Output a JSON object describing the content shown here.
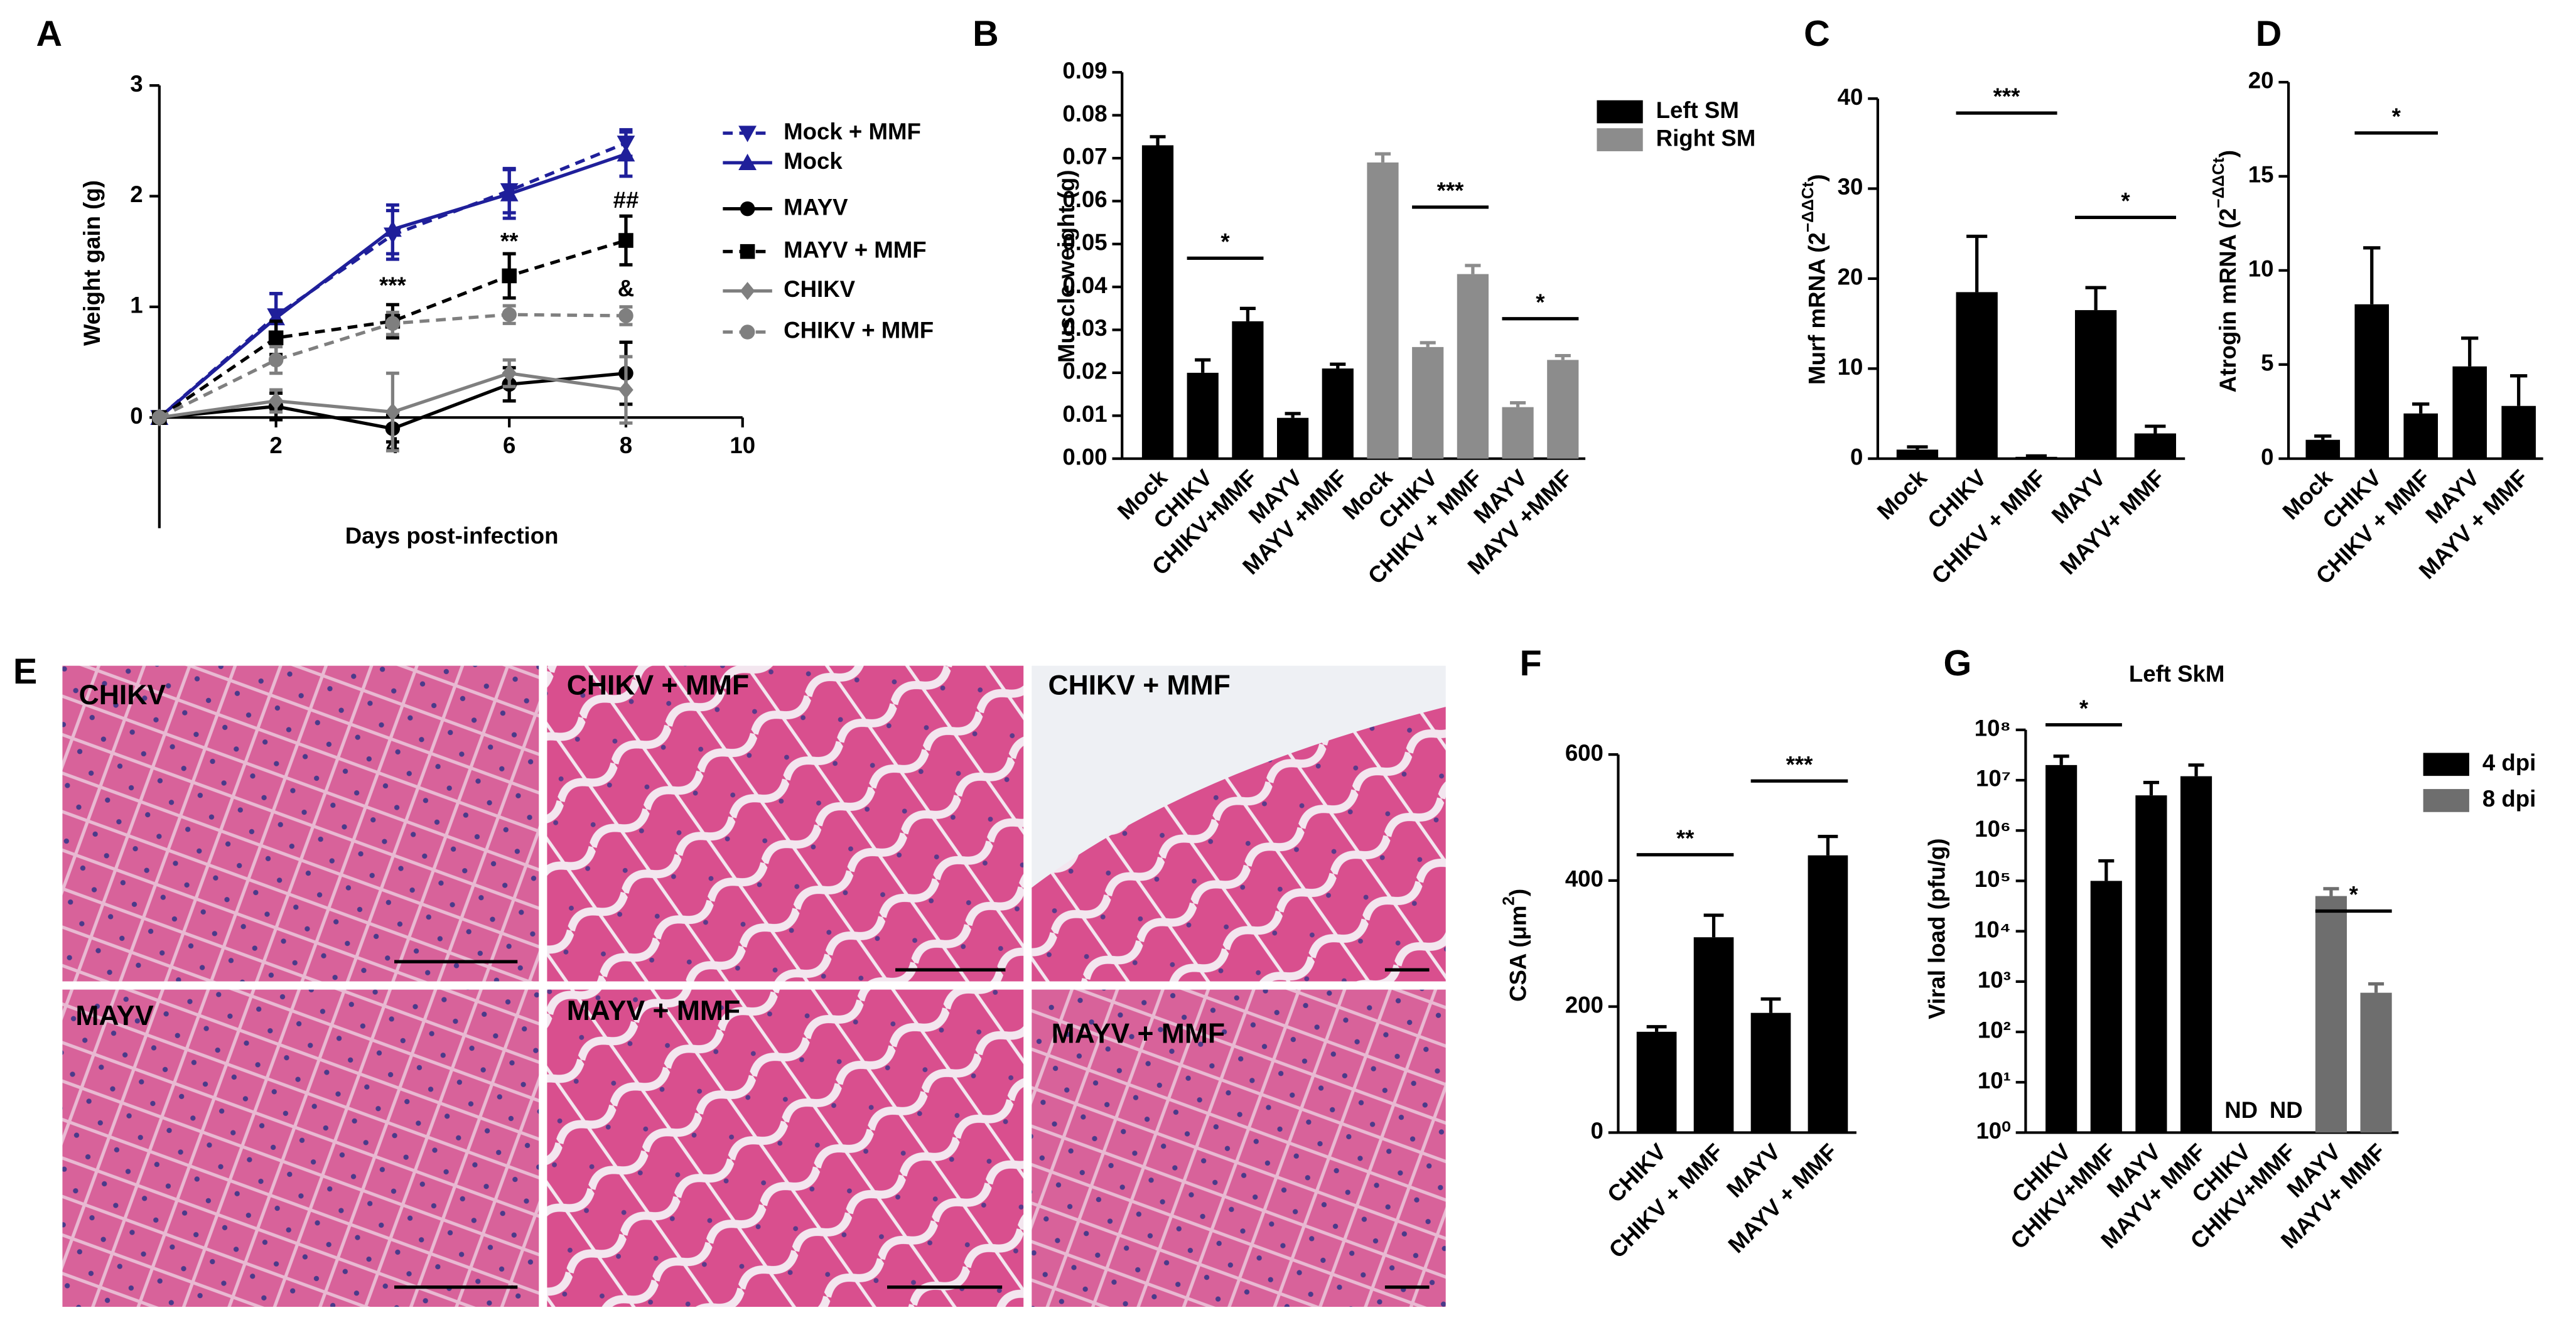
{
  "chart_data": [
    {
      "type": "line",
      "panel": "A",
      "ylabel": "Weight gain (g)",
      "xlabel": "Days post-infection",
      "x": [
        0,
        2,
        4,
        6,
        8
      ],
      "xlim": [
        0,
        10
      ],
      "xticks": [
        2,
        4,
        6,
        8,
        10
      ],
      "ylim": [
        -1,
        3
      ],
      "yticks": [
        0,
        1,
        2,
        3
      ],
      "series": [
        {
          "name": "Mock + MMF",
          "color": "#1f1f9a",
          "marker": "v",
          "dash": true,
          "values": [
            0,
            0.92,
            1.65,
            2.05,
            2.48
          ],
          "errors": [
            0,
            0.2,
            0.22,
            0.2,
            0.12
          ]
        },
        {
          "name": "Mock",
          "color": "#1f1f9a",
          "marker": "^",
          "dash": false,
          "values": [
            0,
            0.9,
            1.7,
            2.02,
            2.38
          ],
          "errors": [
            0,
            0.22,
            0.22,
            0.22,
            0.2
          ]
        },
        {
          "name": "MAYV",
          "color": "#000000",
          "marker": "o",
          "dash": false,
          "values": [
            0,
            0.1,
            -0.1,
            0.3,
            0.4
          ],
          "errors": [
            0,
            0.12,
            0.12,
            0.15,
            0.28
          ]
        },
        {
          "name": "MAYV + MMF",
          "color": "#000000",
          "marker": "s",
          "dash": true,
          "values": [
            0,
            0.72,
            0.87,
            1.28,
            1.6
          ],
          "errors": [
            0,
            0.15,
            0.15,
            0.2,
            0.22
          ]
        },
        {
          "name": "CHIKV",
          "color": "#7f7f7f",
          "marker": "D",
          "dash": false,
          "values": [
            0,
            0.15,
            0.05,
            0.4,
            0.25
          ],
          "errors": [
            0,
            0.1,
            0.35,
            0.12,
            0.3
          ]
        },
        {
          "name": "CHIKV + MMF",
          "color": "#7f7f7f",
          "marker": "o",
          "dash": true,
          "values": [
            0,
            0.52,
            0.85,
            0.93,
            0.92
          ],
          "errors": [
            0,
            0.12,
            0.1,
            0.08,
            0.08
          ]
        }
      ],
      "annotations": [
        "***",
        "**",
        "##",
        "&"
      ]
    },
    {
      "type": "bar",
      "panel": "B",
      "ylabel": "Muscle weight (g)",
      "categories": [
        "Mock",
        "CHIKV",
        "CHIKV+MMF",
        "MAYV",
        "MAYV +MMF",
        "Mock",
        "CHIKV",
        "CHIKV + MMF",
        "MAYV",
        "MAYV +MMF"
      ],
      "ylim": [
        0,
        0.09
      ],
      "yticks": [
        {
          "value": 0,
          "label": "0.00"
        },
        0.01,
        0.02,
        0.03,
        0.04,
        0.05,
        0.06,
        0.07,
        0.08,
        0.09
      ],
      "series": [
        {
          "name": "Left SM",
          "color": "#000000",
          "values": [
            0.073,
            0.02,
            0.032,
            0.0095,
            0.021,
            null,
            null,
            null,
            null,
            null
          ],
          "errors": [
            0.002,
            0.003,
            0.003,
            0.001,
            0.001,
            null,
            null,
            null,
            null,
            null
          ]
        },
        {
          "name": "Right SM",
          "color": "#8c8c8c",
          "values": [
            null,
            null,
            null,
            null,
            null,
            0.069,
            0.026,
            0.043,
            0.012,
            0.023
          ],
          "errors": [
            null,
            null,
            null,
            null,
            null,
            0.002,
            0.001,
            0.002,
            0.001,
            0.001
          ]
        }
      ],
      "annotations": [
        "*",
        "***",
        "*"
      ]
    },
    {
      "type": "bar",
      "panel": "C",
      "ylabel": "Murf mRNA (2",
      "ylabel_sup": "−ΔΔCt",
      "ylabel_end": ")",
      "categories": [
        "Mock",
        "CHIKV",
        "CHIKV + MMF",
        "MAYV",
        "MAYV+ MMF"
      ],
      "values": [
        1,
        18.5,
        0.2,
        16.5,
        2.8
      ],
      "errors": [
        0.3,
        6.2,
        0.1,
        2.5,
        0.8
      ],
      "color": "#000000",
      "ylim": [
        0,
        40
      ],
      "yticks": [
        0,
        10,
        20,
        30,
        40
      ],
      "annotations": [
        "***",
        "*"
      ]
    },
    {
      "type": "bar",
      "panel": "D",
      "ylabel": "Atrogin mRNA (2",
      "ylabel_sup": "−ΔΔCt",
      "ylabel_end": ")",
      "categories": [
        "Mock",
        "CHIKV",
        "CHIKV + MMF",
        "MAYV",
        "MAYV + MMF"
      ],
      "values": [
        1,
        8.2,
        2.4,
        4.9,
        2.8
      ],
      "errors": [
        0.2,
        3,
        0.5,
        1.5,
        1.6
      ],
      "color": "#000000",
      "ylim": [
        0,
        20
      ],
      "yticks": [
        0,
        5,
        10,
        15,
        20
      ],
      "annotations": [
        "*"
      ]
    },
    {
      "type": "bar",
      "panel": "F",
      "ylabel": "CSA (μm",
      "ylabel_sup": "2",
      "ylabel_end": ")",
      "categories": [
        "CHIKV",
        "CHIKV + MMF",
        "MAYV",
        "MAYV + MMF"
      ],
      "values": [
        160,
        310,
        190,
        440
      ],
      "errors": [
        8,
        35,
        22,
        30
      ],
      "color": "#000000",
      "ylim": [
        0,
        600
      ],
      "yticks": [
        0,
        200,
        400,
        600
      ],
      "annotations": [
        "**",
        "***"
      ]
    },
    {
      "type": "bar",
      "panel": "G",
      "title": "Left SkM",
      "ylabel": "Viral load (pfu/g)",
      "log": true,
      "categories": [
        "CHIKV",
        "CHIKV+MMF",
        "MAYV",
        "MAYV+ MMF",
        "CHIKV",
        "CHIKV+MMF",
        "MAYV",
        "MAYV+ MMF"
      ],
      "ylim": [
        1,
        100000000
      ],
      "yticks": [
        {
          "value": 1,
          "label": "10⁰"
        },
        {
          "value": 10,
          "label": "10¹"
        },
        {
          "value": 100,
          "label": "10²"
        },
        {
          "value": 1000,
          "label": "10³"
        },
        {
          "value": 10000,
          "label": "10⁴"
        },
        {
          "value": 100000,
          "label": "10⁵"
        },
        {
          "value": 1000000,
          "label": "10⁶"
        },
        {
          "value": 10000000,
          "label": "10⁷"
        },
        {
          "value": 100000000,
          "label": "10⁸"
        }
      ],
      "series": [
        {
          "name": "4 dpi",
          "color": "#000000",
          "values": [
            20000000,
            100000,
            5000000,
            12000000,
            null,
            null,
            null,
            null
          ],
          "errors": [
            10000000,
            150000,
            4000000,
            8000000,
            null,
            null,
            null,
            null
          ]
        },
        {
          "name": "8 dpi",
          "color": "#6e6e6e",
          "values": [
            null,
            null,
            null,
            null,
            null,
            null,
            50000,
            600
          ],
          "errors": [
            null,
            null,
            null,
            null,
            null,
            null,
            20000,
            300
          ]
        }
      ],
      "annotations": [
        "*",
        "ND",
        "ND",
        "*"
      ]
    }
  ],
  "images": {
    "panel": "E",
    "labels": [
      "CHIKV",
      "CHIKV + MMF",
      "CHIKV + MMF",
      "MAYV",
      "MAYV + MMF",
      "MAYV + MMF"
    ]
  }
}
